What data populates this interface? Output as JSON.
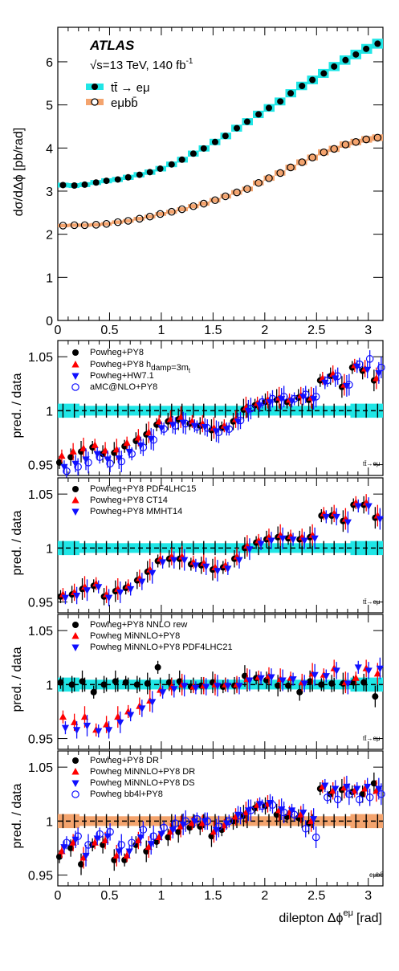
{
  "top_panel": {
    "ylabel": "dσ/dΔϕ [pb/rad]",
    "experiment": "ATLAS",
    "energy_prefix": "√s=13 TeV, 140 fb",
    "energy_sup": "-1",
    "legend": [
      {
        "label": "tt̄ → eμ"
      },
      {
        "label": "eμbb̄"
      }
    ]
  },
  "ratio_panels": [
    {
      "ylabel": "pred. / data",
      "legend": [
        {
          "main": "Powheg+PY8",
          "sub": "",
          "post": ""
        },
        {
          "main": "Powheg+PY8 h",
          "sub": "damp",
          "post": "=3m",
          "subt": "t"
        },
        {
          "main": "Powheg+HW7.1",
          "sub": "",
          "post": ""
        },
        {
          "main": "aMC@NLO+PY8",
          "sub": "",
          "post": ""
        }
      ],
      "tag": "tt̄→eμ"
    },
    {
      "ylabel": "pred. / data",
      "legend": [
        {
          "main": "Powheg+PY8 PDF4LHC15"
        },
        {
          "main": "Powheg+PY8 CT14"
        },
        {
          "main": "Powheg+PY8 MMHT14"
        }
      ],
      "tag": "tt̄→eμ"
    },
    {
      "ylabel": "pred. / data",
      "legend": [
        {
          "main": "Powheg+PY8 NNLO rew"
        },
        {
          "main": "Powheg MiNNLO+PY8"
        },
        {
          "main": "Powheg MiNNLO+PY8 PDF4LHC21"
        }
      ],
      "tag": "tt̄→eμ"
    },
    {
      "ylabel": "pred. / data",
      "legend": [
        {
          "main": "Powheg+PY8 DR"
        },
        {
          "main": "Powheg MiNNLO+PY8 DR"
        },
        {
          "main": "Powheg MiNNLO+PY8 DS"
        },
        {
          "main": "Powheg bb4l+PY8"
        }
      ],
      "tag": "eμbb̄"
    }
  ],
  "xlabel": "dilepton Δϕ",
  "xlabel_sup": "eμ",
  "xlabel_unit": "[rad]",
  "colors": {
    "cyan_band": "#20e6e6",
    "orange_band": "#f4a46e",
    "black": "#000000",
    "red": "#ff0000",
    "blue": "#1010ff"
  },
  "chart_data": [
    {
      "type": "scatter",
      "panel": "main",
      "x": [
        0.05,
        0.16,
        0.26,
        0.37,
        0.47,
        0.58,
        0.68,
        0.79,
        0.89,
        0.99,
        1.1,
        1.2,
        1.31,
        1.41,
        1.52,
        1.62,
        1.73,
        1.83,
        1.94,
        2.04,
        2.15,
        2.25,
        2.36,
        2.46,
        2.57,
        2.67,
        2.78,
        2.88,
        2.98,
        3.09
      ],
      "xlim": [
        0,
        3.1416
      ],
      "ylim": [
        0,
        6.8
      ],
      "xticks": [
        0,
        0.5,
        1,
        1.5,
        2,
        2.5,
        3
      ],
      "yticks": [
        0,
        1,
        2,
        3,
        4,
        5,
        6
      ],
      "series": [
        {
          "name": "tt̄ → eμ",
          "marker": "filled-circle",
          "band": "cyan",
          "values": [
            3.14,
            3.13,
            3.15,
            3.2,
            3.24,
            3.27,
            3.32,
            3.38,
            3.44,
            3.52,
            3.62,
            3.73,
            3.87,
            3.99,
            4.14,
            4.28,
            4.46,
            4.61,
            4.78,
            4.93,
            5.08,
            5.27,
            5.44,
            5.58,
            5.73,
            5.89,
            6.04,
            6.17,
            6.3,
            6.42
          ]
        },
        {
          "name": "eμbb̄",
          "marker": "open-circle",
          "band": "orange",
          "values": [
            2.2,
            2.21,
            2.21,
            2.22,
            2.24,
            2.28,
            2.31,
            2.36,
            2.41,
            2.47,
            2.52,
            2.58,
            2.65,
            2.71,
            2.79,
            2.88,
            2.97,
            3.05,
            3.19,
            3.3,
            3.42,
            3.55,
            3.67,
            3.78,
            3.9,
            3.98,
            4.08,
            4.14,
            4.2,
            4.24
          ]
        }
      ]
    },
    {
      "type": "scatter",
      "panel": "ratio-1",
      "ylim": [
        0.94,
        1.065
      ],
      "yticks": [
        0.95,
        1,
        1.05
      ],
      "series": [
        {
          "name": "Powheg+PY8",
          "marker": "filled-circle",
          "color": "black",
          "values": [
            0.952,
            0.957,
            0.962,
            0.966,
            0.96,
            0.961,
            0.967,
            0.972,
            0.978,
            0.987,
            0.99,
            0.992,
            0.988,
            0.986,
            0.982,
            0.984,
            0.99,
            1.001,
            1.005,
            1.008,
            1.01,
            1.008,
            1.012,
            1.01,
            1.028,
            1.032,
            1.022,
            1.04,
            1.037,
            1.028
          ]
        },
        {
          "name": "Powheg+PY8 h_damp=3m_t",
          "marker": "filled-triangle-up",
          "color": "red",
          "values": [
            0.958,
            0.962,
            0.965,
            0.968,
            0.963,
            0.964,
            0.97,
            0.975,
            0.98,
            0.99,
            0.992,
            0.994,
            0.99,
            0.988,
            0.984,
            0.986,
            0.992,
            1.003,
            1.007,
            1.01,
            1.012,
            1.01,
            1.014,
            1.012,
            1.03,
            1.034,
            1.024,
            1.042,
            1.039,
            1.03
          ]
        },
        {
          "name": "Powheg+HW7.1",
          "marker": "filled-triangle-down",
          "color": "blue",
          "values": [
            0.948,
            0.951,
            0.955,
            0.96,
            0.955,
            0.956,
            0.962,
            0.968,
            0.974,
            0.984,
            0.987,
            0.989,
            0.986,
            0.985,
            0.981,
            0.983,
            0.99,
            1.0,
            1.005,
            1.008,
            1.011,
            1.009,
            1.013,
            1.011,
            1.026,
            1.03,
            1.023,
            1.041,
            1.038,
            1.035
          ]
        },
        {
          "name": "aMC@NLO+PY8",
          "marker": "open-circle",
          "color": "blue",
          "values": [
            0.944,
            0.948,
            0.952,
            0.957,
            0.951,
            0.953,
            0.96,
            0.966,
            0.973,
            0.983,
            0.986,
            0.988,
            0.985,
            0.984,
            0.98,
            0.983,
            0.991,
            1.002,
            1.008,
            1.011,
            1.013,
            1.011,
            1.015,
            1.013,
            1.028,
            1.032,
            1.024,
            1.043,
            1.048,
            1.04
          ]
        }
      ],
      "band": "cyan"
    },
    {
      "type": "scatter",
      "panel": "ratio-2",
      "ylim": [
        0.94,
        1.065
      ],
      "yticks": [
        0.95,
        1,
        1.05
      ],
      "series": [
        {
          "name": "Powheg+PY8 PDF4LHC15",
          "marker": "filled-circle",
          "color": "black",
          "values": [
            0.955,
            0.957,
            0.962,
            0.965,
            0.955,
            0.96,
            0.963,
            0.97,
            0.978,
            0.988,
            0.99,
            0.99,
            0.985,
            0.984,
            0.98,
            0.982,
            0.99,
            1.0,
            1.005,
            1.008,
            1.01,
            1.009,
            1.008,
            1.01,
            1.03,
            1.03,
            1.025,
            1.04,
            1.04,
            1.028
          ]
        },
        {
          "name": "Powheg+PY8 CT14",
          "marker": "filled-triangle-up",
          "color": "red",
          "values": [
            0.957,
            0.959,
            0.964,
            0.967,
            0.957,
            0.962,
            0.965,
            0.972,
            0.98,
            0.99,
            0.992,
            0.992,
            0.987,
            0.986,
            0.982,
            0.984,
            0.992,
            1.002,
            1.007,
            1.01,
            1.012,
            1.011,
            1.01,
            1.012,
            1.032,
            1.032,
            1.027,
            1.042,
            1.042,
            1.03
          ]
        },
        {
          "name": "Powheg+PY8 MMHT14",
          "marker": "filled-triangle-down",
          "color": "blue",
          "values": [
            0.954,
            0.956,
            0.961,
            0.964,
            0.954,
            0.959,
            0.962,
            0.969,
            0.977,
            0.987,
            0.989,
            0.989,
            0.984,
            0.983,
            0.979,
            0.981,
            0.989,
            0.999,
            1.004,
            1.007,
            1.009,
            1.008,
            1.007,
            1.009,
            1.029,
            1.029,
            1.024,
            1.039,
            1.039,
            1.027
          ]
        }
      ],
      "band": "cyan"
    },
    {
      "type": "scatter",
      "panel": "ratio-3",
      "ylim": [
        0.94,
        1.065
      ],
      "yticks": [
        0.95,
        1,
        1.05
      ],
      "series": [
        {
          "name": "Powheg+PY8 NNLO rew",
          "marker": "filled-circle",
          "color": "black",
          "values": [
            1.002,
            1.0,
            1.003,
            0.993,
            1.0,
            1.003,
            1.002,
            1.0,
            1.001,
            1.016,
            1.002,
            1.003,
            0.998,
            0.999,
            1.002,
            0.998,
            0.999,
            1.008,
            1.006,
            1.004,
            0.999,
            0.999,
            0.993,
            1.003,
            1.0,
            1.001,
            1.001,
            1.002,
            1.002,
            0.989
          ]
        },
        {
          "name": "Powheg MiNNLO+PY8",
          "marker": "filled-triangle-up",
          "color": "red",
          "values": [
            0.97,
            0.965,
            0.97,
            0.958,
            0.963,
            0.97,
            0.975,
            0.98,
            0.985,
            0.995,
            0.998,
            1.0,
            0.998,
            0.999,
            1.0,
            1.0,
            1.0,
            1.005,
            1.007,
            1.008,
            1.005,
            1.006,
            1.002,
            1.01,
            1.009,
            1.015,
            1.002,
            1.006,
            1.015,
            1.01
          ]
        },
        {
          "name": "Powheg MiNNLO+PY8 PDF4LHC21",
          "marker": "filled-triangle-down",
          "color": "blue",
          "values": [
            0.96,
            0.958,
            0.962,
            0.957,
            0.958,
            0.965,
            0.972,
            0.978,
            0.984,
            0.993,
            0.996,
            0.999,
            0.997,
            0.998,
            0.999,
            0.999,
            0.999,
            1.004,
            1.006,
            1.007,
            1.004,
            1.005,
            1.001,
            1.009,
            1.008,
            1.013,
            1.001,
            1.016,
            1.013,
            1.015
          ]
        }
      ],
      "band": "cyan"
    },
    {
      "type": "scatter",
      "panel": "ratio-4",
      "ylim": [
        0.94,
        1.065
      ],
      "yticks": [
        0.95,
        1,
        1.05
      ],
      "series": [
        {
          "name": "Powheg+PY8 DR",
          "marker": "filled-circle",
          "color": "black",
          "values": [
            0.967,
            0.975,
            0.96,
            0.978,
            0.978,
            0.964,
            0.964,
            0.978,
            0.972,
            0.981,
            0.985,
            0.99,
            0.994,
            0.995,
            0.986,
            0.992,
            1.0,
            1.005,
            1.012,
            1.014,
            1.006,
            1.004,
            1.003,
            0.998,
            1.03,
            1.025,
            1.029,
            1.027,
            1.025,
            1.035
          ]
        },
        {
          "name": "Powheg MiNNLO+PY8 DR",
          "marker": "filled-triangle-up",
          "color": "red",
          "values": [
            0.972,
            0.98,
            0.966,
            0.98,
            0.982,
            0.968,
            0.968,
            0.982,
            0.976,
            0.985,
            0.99,
            0.995,
            0.998,
            0.998,
            0.99,
            0.996,
            1.004,
            1.008,
            1.015,
            1.016,
            1.01,
            1.008,
            1.006,
            1.0,
            1.032,
            1.028,
            1.031,
            1.028,
            1.03,
            1.028
          ]
        },
        {
          "name": "Powheg MiNNLO+PY8 DS",
          "marker": "filled-triangle-down",
          "color": "blue",
          "values": [
            0.976,
            0.983,
            0.968,
            0.984,
            0.986,
            0.972,
            0.972,
            0.985,
            0.979,
            0.988,
            0.992,
            0.997,
            1.0,
            1.0,
            0.992,
            0.998,
            1.006,
            1.01,
            1.016,
            1.017,
            1.011,
            1.01,
            1.008,
            1.002,
            1.033,
            1.03,
            1.032,
            1.03,
            1.032,
            1.03
          ]
        },
        {
          "name": "Powheg bb4l+PY8",
          "marker": "open-circle",
          "color": "blue",
          "values": [
            0.98,
            0.986,
            0.978,
            0.988,
            0.99,
            0.978,
            0.98,
            0.992,
            0.986,
            0.994,
            0.998,
            1.0,
            1.002,
            1.0,
            0.995,
            1.0,
            1.005,
            1.01,
            1.014,
            1.015,
            1.008,
            1.006,
            0.993,
            0.985,
            1.022,
            1.02,
            1.025,
            1.02,
            1.022,
            1.025
          ]
        }
      ],
      "band": "orange"
    }
  ]
}
